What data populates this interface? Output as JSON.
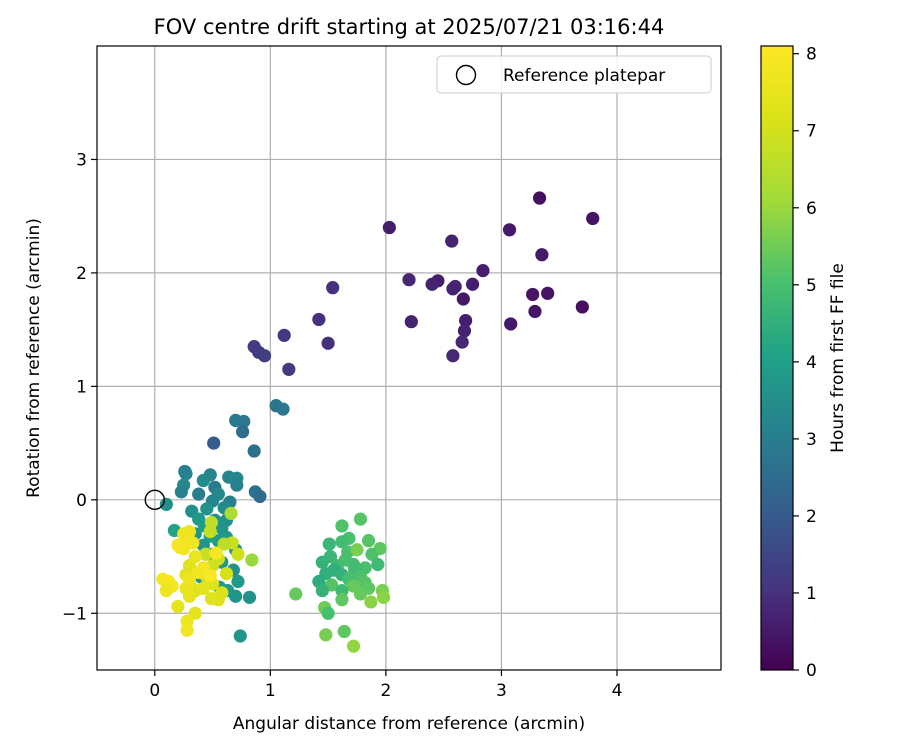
{
  "chart_data": {
    "type": "scatter",
    "title": "FOV centre drift starting at 2025/07/21 03:16:44",
    "xlabel": "Angular distance from reference (arcmin)",
    "ylabel": "Rotation from reference (arcmin)",
    "xlim": [
      -0.5,
      4.9
    ],
    "ylim": [
      -1.5,
      4.0
    ],
    "x_ticks": [
      0,
      1,
      2,
      3,
      4
    ],
    "y_ticks": [
      -1,
      0,
      1,
      2,
      3
    ],
    "x_tick_labels": [
      "0",
      "1",
      "2",
      "3",
      "4"
    ],
    "y_tick_labels": [
      "−1",
      "0",
      "1",
      "2",
      "3"
    ],
    "grid": true,
    "legend": {
      "placement": "top-right",
      "entries": [
        "Reference platepar"
      ]
    },
    "reference_point": {
      "x": 0,
      "y": 0,
      "label": "Reference platepar"
    },
    "colorbar": {
      "label": "Hours from first FF file",
      "colormap": "viridis",
      "range": [
        0,
        8.1
      ],
      "ticks": [
        0,
        1,
        2,
        3,
        4,
        5,
        6,
        7,
        8
      ],
      "tick_labels": [
        "0",
        "1",
        "2",
        "3",
        "4",
        "5",
        "6",
        "7",
        "8"
      ]
    },
    "points": [
      [
        3.33,
        2.66,
        0.3
      ],
      [
        3.79,
        2.48,
        0.4
      ],
      [
        2.03,
        2.4,
        0.6
      ],
      [
        2.57,
        2.28,
        0.7
      ],
      [
        3.07,
        2.38,
        0.5
      ],
      [
        3.35,
        2.16,
        0.5
      ],
      [
        2.84,
        2.02,
        0.6
      ],
      [
        2.2,
        1.94,
        0.8
      ],
      [
        2.45,
        1.93,
        0.6
      ],
      [
        2.4,
        1.9,
        0.7
      ],
      [
        2.6,
        1.88,
        0.8
      ],
      [
        2.75,
        1.9,
        0.6
      ],
      [
        2.58,
        1.86,
        0.7
      ],
      [
        3.27,
        1.81,
        0.4
      ],
      [
        3.4,
        1.82,
        0.4
      ],
      [
        2.67,
        1.77,
        0.5
      ],
      [
        1.54,
        1.87,
        1.0
      ],
      [
        3.29,
        1.66,
        0.4
      ],
      [
        3.7,
        1.7,
        0.3
      ],
      [
        2.22,
        1.57,
        0.7
      ],
      [
        2.69,
        1.58,
        0.6
      ],
      [
        3.08,
        1.55,
        0.5
      ],
      [
        2.68,
        1.49,
        0.7
      ],
      [
        1.42,
        1.59,
        1.0
      ],
      [
        1.12,
        1.45,
        1.1
      ],
      [
        2.66,
        1.39,
        0.8
      ],
      [
        1.5,
        1.38,
        1.0
      ],
      [
        2.58,
        1.27,
        0.8
      ],
      [
        0.86,
        1.35,
        1.2
      ],
      [
        0.9,
        1.3,
        1.2
      ],
      [
        0.95,
        1.27,
        1.3
      ],
      [
        1.16,
        1.15,
        1.2
      ],
      [
        1.05,
        0.83,
        2.7
      ],
      [
        1.11,
        0.8,
        2.8
      ],
      [
        0.7,
        0.7,
        2.9
      ],
      [
        0.77,
        0.69,
        2.8
      ],
      [
        0.76,
        0.6,
        2.5
      ],
      [
        0.51,
        0.5,
        2.0
      ],
      [
        0.86,
        0.43,
        2.6
      ],
      [
        0.26,
        0.25,
        3.0
      ],
      [
        0.27,
        0.23,
        3.1
      ],
      [
        0.64,
        0.2,
        3.2
      ],
      [
        0.71,
        0.19,
        3.3
      ],
      [
        0.48,
        0.22,
        3.2
      ],
      [
        0.42,
        0.17,
        3.4
      ],
      [
        0.25,
        0.13,
        3.3
      ],
      [
        0.52,
        0.11,
        2.9
      ],
      [
        0.71,
        0.13,
        3.1
      ],
      [
        0.55,
        0.05,
        3.3
      ],
      [
        0.38,
        0.05,
        3.0
      ],
      [
        0.23,
        0.07,
        3.1
      ],
      [
        0.87,
        0.07,
        2.6
      ],
      [
        0.91,
        0.03,
        2.5
      ],
      [
        0.5,
        -0.01,
        3.2
      ],
      [
        0.65,
        -0.02,
        3.0
      ],
      [
        0.1,
        -0.04,
        3.5
      ],
      [
        0.32,
        -0.1,
        3.5
      ],
      [
        0.45,
        -0.08,
        3.6
      ],
      [
        0.6,
        -0.07,
        3.4
      ],
      [
        0.38,
        -0.17,
        3.8
      ],
      [
        0.52,
        -0.18,
        3.7
      ],
      [
        0.62,
        -0.18,
        3.5
      ],
      [
        0.43,
        -0.23,
        3.9
      ],
      [
        0.58,
        -0.25,
        3.6
      ],
      [
        0.17,
        -0.27,
        4.1
      ],
      [
        0.35,
        -0.3,
        3.7
      ],
      [
        0.48,
        -0.32,
        4.0
      ],
      [
        0.55,
        -0.36,
        3.9
      ],
      [
        0.62,
        -0.33,
        3.8
      ],
      [
        0.42,
        -0.4,
        3.6
      ],
      [
        0.7,
        -0.44,
        3.5
      ],
      [
        0.5,
        -0.48,
        3.9
      ],
      [
        0.58,
        -0.55,
        3.8
      ],
      [
        0.68,
        -0.62,
        3.6
      ],
      [
        0.4,
        -0.68,
        3.7
      ],
      [
        0.72,
        -0.72,
        3.8
      ],
      [
        0.56,
        -0.77,
        3.9
      ],
      [
        0.63,
        -0.8,
        3.8
      ],
      [
        0.7,
        -0.85,
        3.7
      ],
      [
        0.82,
        -0.86,
        3.6
      ],
      [
        0.74,
        -1.2,
        3.7
      ],
      [
        1.62,
        -0.23,
        5.1
      ],
      [
        1.78,
        -0.17,
        5.2
      ],
      [
        1.68,
        -0.34,
        5.0
      ],
      [
        1.51,
        -0.39,
        4.7
      ],
      [
        1.62,
        -0.37,
        4.9
      ],
      [
        1.85,
        -0.36,
        5.2
      ],
      [
        1.67,
        -0.46,
        5.0
      ],
      [
        1.75,
        -0.44,
        5.6
      ],
      [
        1.95,
        -0.43,
        5.3
      ],
      [
        1.52,
        -0.5,
        4.7
      ],
      [
        1.88,
        -0.48,
        5.1
      ],
      [
        1.45,
        -0.55,
        4.6
      ],
      [
        1.58,
        -0.58,
        4.8
      ],
      [
        1.65,
        -0.53,
        5.0
      ],
      [
        1.72,
        -0.57,
        4.9
      ],
      [
        1.82,
        -0.6,
        5.0
      ],
      [
        1.93,
        -0.57,
        4.8
      ],
      [
        1.55,
        -0.62,
        4.5
      ],
      [
        1.62,
        -0.66,
        4.6
      ],
      [
        1.73,
        -0.62,
        4.9
      ],
      [
        1.78,
        -0.68,
        5.1
      ],
      [
        1.48,
        -0.65,
        4.5
      ],
      [
        1.42,
        -0.72,
        4.4
      ],
      [
        1.68,
        -0.7,
        5.0
      ],
      [
        1.82,
        -0.73,
        5.2
      ],
      [
        1.53,
        -0.75,
        5.2
      ],
      [
        1.72,
        -0.76,
        5.4
      ],
      [
        1.85,
        -0.78,
        5.3
      ],
      [
        1.97,
        -0.8,
        5.6
      ],
      [
        1.62,
        -0.8,
        4.8
      ],
      [
        1.45,
        -0.8,
        4.6
      ],
      [
        1.78,
        -0.83,
        5.4
      ],
      [
        1.98,
        -0.86,
        5.8
      ],
      [
        1.22,
        -0.83,
        5.4
      ],
      [
        1.87,
        -0.9,
        5.8
      ],
      [
        1.62,
        -0.88,
        5.3
      ],
      [
        1.47,
        -0.95,
        5.5
      ],
      [
        1.5,
        -1.0,
        5.0
      ],
      [
        1.64,
        -1.16,
        5.3
      ],
      [
        1.48,
        -1.19,
        5.6
      ],
      [
        1.72,
        -1.29,
        5.9
      ],
      [
        0.66,
        -0.12,
        6.3
      ],
      [
        0.49,
        -0.2,
        6.6
      ],
      [
        0.48,
        -0.28,
        6.7
      ],
      [
        0.67,
        -0.38,
        6.8
      ],
      [
        0.6,
        -0.39,
        6.6
      ],
      [
        0.72,
        -0.48,
        6.9
      ],
      [
        0.84,
        -0.53,
        6.0
      ],
      [
        0.44,
        -0.48,
        6.8
      ],
      [
        0.55,
        -0.52,
        7.0
      ],
      [
        0.5,
        -0.58,
        6.9
      ],
      [
        0.62,
        -0.65,
        7.1
      ],
      [
        0.45,
        -0.68,
        7.0
      ],
      [
        0.5,
        -0.74,
        7.2
      ],
      [
        0.58,
        -0.82,
        7.1
      ],
      [
        0.55,
        -0.88,
        7.2
      ],
      [
        0.49,
        -0.87,
        7.3
      ],
      [
        0.35,
        -0.8,
        7.2
      ],
      [
        0.3,
        -0.74,
        7.3
      ],
      [
        0.42,
        -0.78,
        7.4
      ],
      [
        0.27,
        -0.66,
        7.5
      ],
      [
        0.3,
        -0.58,
        7.3
      ],
      [
        0.35,
        -0.5,
        7.6
      ],
      [
        0.22,
        -0.42,
        7.5
      ],
      [
        0.28,
        -0.36,
        7.6
      ],
      [
        0.25,
        -0.3,
        7.7
      ],
      [
        0.3,
        -0.28,
        7.7
      ],
      [
        0.33,
        -0.38,
        7.8
      ],
      [
        0.25,
        -0.43,
        7.8
      ],
      [
        0.2,
        -0.4,
        7.9
      ],
      [
        0.53,
        -0.47,
        7.9
      ],
      [
        0.48,
        -0.67,
        8.0
      ],
      [
        0.42,
        -0.6,
        7.9
      ],
      [
        0.38,
        -0.64,
        7.8
      ],
      [
        0.3,
        -0.7,
        7.7
      ],
      [
        0.27,
        -0.78,
        7.6
      ],
      [
        0.07,
        -0.7,
        7.8
      ],
      [
        0.12,
        -0.72,
        7.9
      ],
      [
        0.15,
        -0.76,
        7.8
      ],
      [
        0.1,
        -0.8,
        7.7
      ],
      [
        0.3,
        -0.85,
        7.5
      ],
      [
        0.2,
        -0.94,
        7.4
      ],
      [
        0.35,
        -1.0,
        7.4
      ],
      [
        0.28,
        -1.07,
        7.6
      ],
      [
        0.28,
        -1.15,
        7.8
      ]
    ]
  }
}
